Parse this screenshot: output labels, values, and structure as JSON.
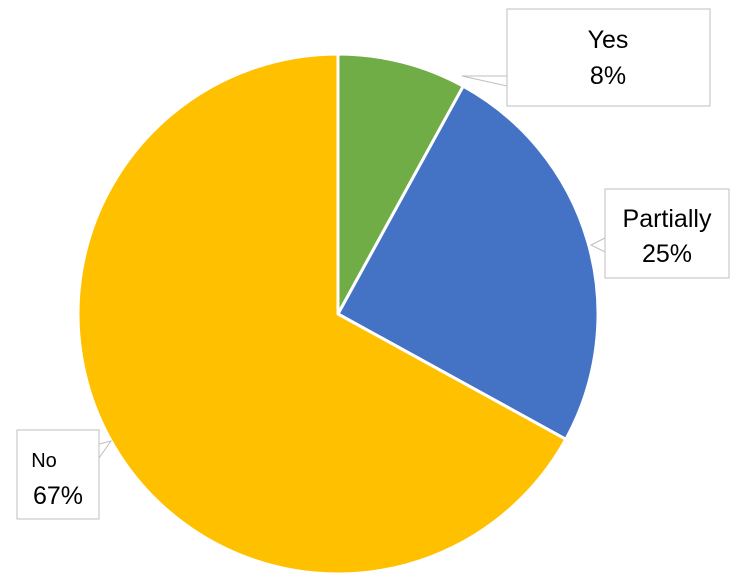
{
  "chart_data": {
    "type": "pie",
    "title": "",
    "slices": [
      {
        "label": "Yes",
        "value": 8,
        "display": "8%",
        "color": "#70AD47"
      },
      {
        "label": "Partially",
        "value": 25,
        "display": "25%",
        "color": "#4472C4"
      },
      {
        "label": "No",
        "value": 67,
        "display": "67%",
        "color": "#FFC000"
      }
    ],
    "start_angle_deg": 0,
    "direction": "clockwise",
    "legend": "none",
    "data_labels": "callouts with category name and percentage"
  }
}
